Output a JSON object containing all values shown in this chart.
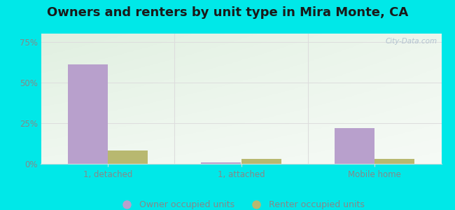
{
  "title": "Owners and renters by unit type in Mira Monte, CA",
  "categories": [
    "1, detached",
    "1, attached",
    "Mobile home"
  ],
  "owner_values": [
    61,
    1,
    22
  ],
  "renter_values": [
    8,
    3,
    3
  ],
  "owner_color": "#b8a0cc",
  "renter_color": "#b8b870",
  "yticks": [
    0,
    25,
    50,
    75
  ],
  "ytick_labels": [
    "0%",
    "25%",
    "50%",
    "75%"
  ],
  "ylim": [
    0,
    80
  ],
  "bar_width": 0.3,
  "bg_color_topleft": "#c8e8c0",
  "bg_color_topright": "#e8f0e8",
  "bg_color_bottom": "#f0fff0",
  "outer_color": "#00e8e8",
  "title_fontsize": 13,
  "axis_label_color": "#888888",
  "tick_label_color": "#888888",
  "watermark": "City-Data.com",
  "grid_color": "#dddddd",
  "legend_owner": "Owner occupied units",
  "legend_renter": "Renter occupied units"
}
